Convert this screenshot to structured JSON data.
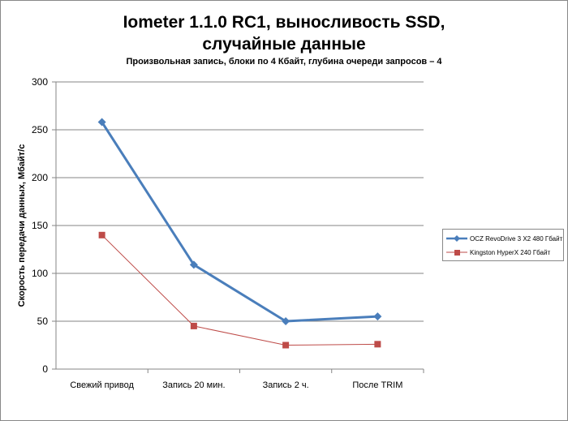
{
  "chart_data": {
    "type": "line",
    "title_line1": "Iometer 1.1.0 RC1, выносливость SSD,",
    "title_line2": "случайные данные",
    "subtitle": "Произвольная  запись, блоки по 4 Кбайт, глубина очереди запросов – 4",
    "xlabel": "",
    "ylabel": "Скорость  передачи данных, Мбайт/с",
    "ylim": [
      0,
      300
    ],
    "yticks": [
      0,
      50,
      100,
      150,
      200,
      250,
      300
    ],
    "grid": true,
    "legend_position": "right",
    "categories": [
      "Свежий привод",
      "Запись 20 мин.",
      "Запись 2 ч.",
      "После TRIM"
    ],
    "series": [
      {
        "name": "OCZ RevoDrive 3 X2 480 Гбайт",
        "color": "#4a7ebb",
        "marker": "diamond",
        "values": [
          258,
          109,
          50,
          55
        ]
      },
      {
        "name": "Kingston HyperX 240 Гбайт",
        "color": "#be4b48",
        "marker": "square",
        "values": [
          140,
          45,
          25,
          26
        ]
      }
    ]
  }
}
